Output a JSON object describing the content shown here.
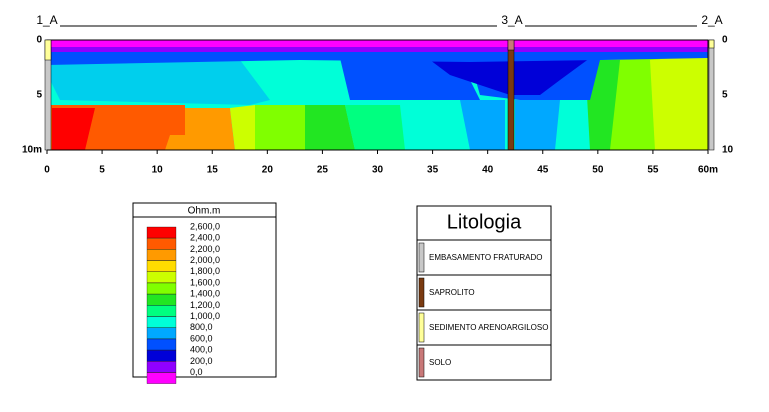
{
  "section": {
    "wells": [
      {
        "label": "1_A"
      },
      {
        "label": "3_A"
      },
      {
        "label": "2_A"
      }
    ],
    "x_ticks": [
      "0",
      "5",
      "10",
      "15",
      "20",
      "25",
      "30",
      "35",
      "40",
      "45",
      "50",
      "55",
      "60m"
    ],
    "y_ticks_left": [
      "0",
      "5",
      "10m"
    ],
    "y_ticks_right": [
      "0",
      "5",
      "10"
    ]
  },
  "resistivity_legend": {
    "title": "Ohm.m",
    "items": [
      {
        "label": "2,600,0",
        "color": "#ff0000"
      },
      {
        "label": "2,400,0",
        "color": "#ff5a00"
      },
      {
        "label": "2,200,0",
        "color": "#ff9a00"
      },
      {
        "label": "2,000,0",
        "color": "#ffdc00"
      },
      {
        "label": "1,800,0",
        "color": "#ccff00"
      },
      {
        "label": "1,600,0",
        "color": "#80ff00"
      },
      {
        "label": "1,400,0",
        "color": "#22e622"
      },
      {
        "label": "1,200,0",
        "color": "#00ff80"
      },
      {
        "label": "1,000,0",
        "color": "#00ffd8"
      },
      {
        "label": "800,0",
        "color": "#00a8ff"
      },
      {
        "label": "600,0",
        "color": "#0050ff"
      },
      {
        "label": "400,0",
        "color": "#0000d8"
      },
      {
        "label": "200,0",
        "color": "#9000ff"
      },
      {
        "label": "0,0",
        "color": "#ff00ff"
      }
    ]
  },
  "lithology_legend": {
    "title": "Litologia",
    "items": [
      {
        "label": "EMBASAMENTO FRATURADO",
        "color": "#c8c8c8"
      },
      {
        "label": "SAPROLITO",
        "color": "#7a3a10"
      },
      {
        "label": "SEDIMENTO ARENOARGILOSO",
        "color": "#ffff99"
      },
      {
        "label": "SOLO",
        "color": "#c87878"
      }
    ]
  }
}
